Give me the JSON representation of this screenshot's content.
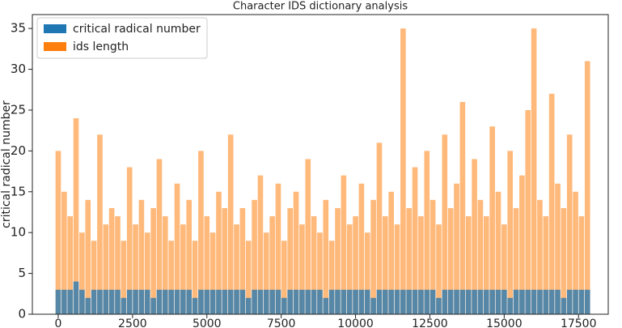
{
  "chart_data": {
    "type": "bar",
    "title": "Character IDS dictionary analysis",
    "y_label": "critical radical number",
    "x": [
      0,
      200,
      400,
      600,
      800,
      1000,
      1200,
      1400,
      1600,
      1800,
      2000,
      2200,
      2400,
      2600,
      2800,
      3000,
      3200,
      3400,
      3600,
      3800,
      4000,
      4200,
      4400,
      4600,
      4800,
      5000,
      5200,
      5400,
      5600,
      5800,
      6000,
      6200,
      6400,
      6600,
      6800,
      7000,
      7200,
      7400,
      7600,
      7800,
      8000,
      8200,
      8400,
      8600,
      8800,
      9000,
      9200,
      9400,
      9600,
      9800,
      10000,
      10200,
      10400,
      10600,
      10800,
      11000,
      11200,
      11400,
      11600,
      11800,
      12000,
      12200,
      12400,
      12600,
      12800,
      13000,
      13200,
      13400,
      13600,
      13800,
      14000,
      14200,
      14400,
      14600,
      14800,
      15000,
      15200,
      15400,
      15600,
      15800,
      16000,
      16200,
      16400,
      16600,
      16800,
      17000,
      17200,
      17400,
      17600,
      17800
    ],
    "series": [
      {
        "name": "ids length",
        "color": "#ff7f0e",
        "values": [
          20,
          15,
          12,
          24,
          10,
          14,
          9,
          22,
          11,
          13,
          12,
          9,
          18,
          11,
          14,
          10,
          13,
          19,
          12,
          9,
          16,
          11,
          14,
          9,
          20,
          12,
          10,
          15,
          13,
          22,
          11,
          13,
          9,
          14,
          17,
          10,
          12,
          16,
          9,
          13,
          15,
          11,
          19,
          12,
          10,
          14,
          9,
          13,
          17,
          11,
          12,
          16,
          10,
          14,
          21,
          12,
          15,
          11,
          35,
          13,
          18,
          12,
          20,
          14,
          11,
          22,
          13,
          16,
          26,
          12,
          19,
          14,
          12,
          23,
          15,
          11,
          20,
          13,
          17,
          25,
          35,
          14,
          12,
          27,
          16,
          13,
          22,
          15,
          12,
          31
        ]
      },
      {
        "name": "critical radical number",
        "color": "#1f77b4",
        "values": [
          3,
          3,
          3,
          4,
          3,
          2,
          3,
          3,
          3,
          3,
          3,
          2,
          3,
          3,
          3,
          3,
          2,
          3,
          3,
          3,
          3,
          3,
          3,
          2,
          3,
          3,
          3,
          3,
          3,
          3,
          3,
          3,
          2,
          3,
          3,
          3,
          3,
          3,
          2,
          3,
          3,
          3,
          3,
          3,
          3,
          2,
          3,
          3,
          3,
          3,
          3,
          3,
          3,
          2,
          3,
          3,
          3,
          3,
          3,
          3,
          3,
          3,
          3,
          3,
          2,
          3,
          3,
          3,
          3,
          3,
          3,
          3,
          3,
          3,
          3,
          3,
          2,
          3,
          3,
          3,
          3,
          3,
          3,
          3,
          3,
          2,
          3,
          3,
          3,
          3
        ]
      }
    ],
    "xlim": [
      -870,
      18500
    ],
    "ylim": [
      0,
      36.7
    ],
    "xticks": [
      0,
      2500,
      5000,
      7500,
      10000,
      12500,
      15000,
      17500
    ],
    "yticks": [
      0,
      5,
      10,
      15,
      20,
      25,
      30,
      35
    ],
    "legend": "upper left",
    "legend_order": [
      1,
      0
    ],
    "grid": false
  }
}
